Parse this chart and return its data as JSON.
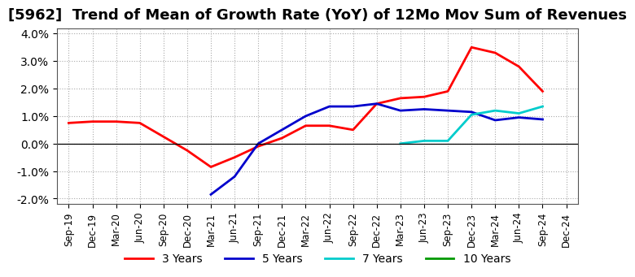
{
  "title": "[5962]  Trend of Mean of Growth Rate (YoY) of 12Mo Mov Sum of Revenues",
  "title_fontsize": 13,
  "ylim": [
    -0.022,
    0.042
  ],
  "yticks": [
    -0.02,
    -0.01,
    0.0,
    0.01,
    0.02,
    0.03,
    0.04
  ],
  "background_color": "#ffffff",
  "grid_color": "#aaaaaa",
  "x_labels": [
    "Sep-19",
    "Dec-19",
    "Mar-20",
    "Jun-20",
    "Sep-20",
    "Dec-20",
    "Mar-21",
    "Jun-21",
    "Sep-21",
    "Dec-21",
    "Mar-22",
    "Jun-22",
    "Sep-22",
    "Dec-22",
    "Mar-23",
    "Jun-23",
    "Sep-23",
    "Dec-23",
    "Mar-24",
    "Jun-24",
    "Sep-24",
    "Dec-24"
  ],
  "line_3yr_color": "#ff0000",
  "line_5yr_color": "#0000cc",
  "line_7yr_color": "#00cccc",
  "line_10yr_color": "#009900",
  "legend_labels": [
    "3 Years",
    "5 Years",
    "7 Years",
    "10 Years"
  ]
}
